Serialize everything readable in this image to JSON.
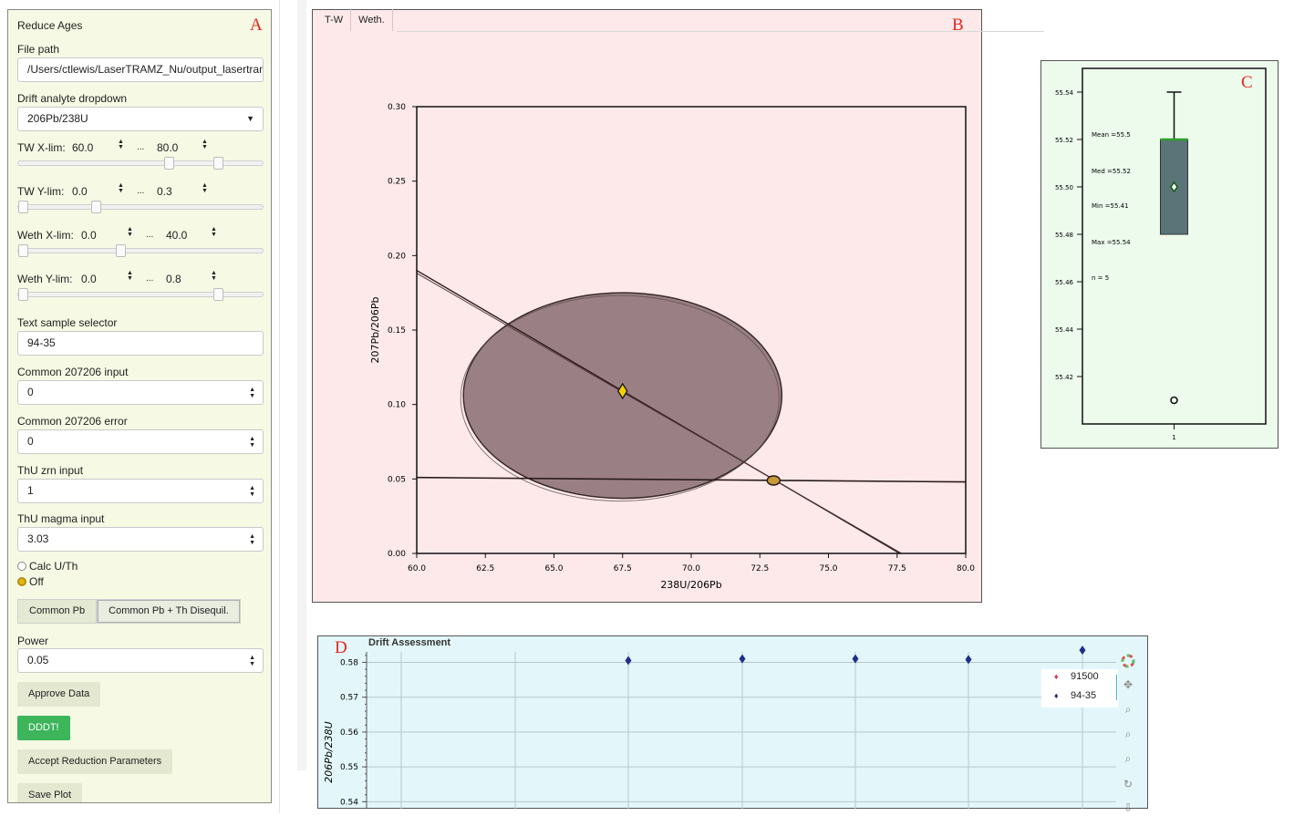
{
  "panelA": {
    "letter": "A",
    "title": "Reduce Ages",
    "file_path": {
      "label": "File path",
      "value": "/Users/ctlewis/LaserTRAMZ_Nu/output_lasertrams"
    },
    "drift_dropdown": {
      "label": "Drift analyte dropdown",
      "value": "206Pb/238U"
    },
    "tw_xlim": {
      "label": "TW X-lim:",
      "low": "60.0",
      "high": "80.0",
      "sep": "...",
      "low_frac": 0.6,
      "high_frac": 0.8
    },
    "tw_ylim": {
      "label": "TW Y-lim:",
      "low": "0.0",
      "high": "0.3",
      "sep": "...",
      "low_frac": 0.0,
      "high_frac": 0.3
    },
    "weth_xlim": {
      "label": "Weth X-lim:",
      "low": "0.0",
      "high": "40.0",
      "sep": "...",
      "low_frac": 0.0,
      "high_frac": 0.4
    },
    "weth_ylim": {
      "label": "Weth Y-lim:",
      "low": "0.0",
      "high": "0.8",
      "sep": "...",
      "low_frac": 0.0,
      "high_frac": 0.8
    },
    "text_sample": {
      "label": "Text sample selector",
      "value": "94-35"
    },
    "common_input": {
      "label": "Common 207206 input",
      "value": "0"
    },
    "common_error": {
      "label": "Common 207206 error",
      "value": "0"
    },
    "thu_zrn": {
      "label": "ThU zrn input",
      "value": "1"
    },
    "thu_magma": {
      "label": "ThU magma input",
      "value": "3.03"
    },
    "radio": [
      {
        "label": "Calc U/Th",
        "checked": false
      },
      {
        "label": "Off",
        "checked": true
      }
    ],
    "segmented": [
      {
        "label": "Common Pb",
        "active": false
      },
      {
        "label": "Common Pb + Th Disequil.",
        "active": true
      }
    ],
    "power": {
      "label": "Power",
      "value": "0.05"
    },
    "buttons": {
      "approve": "Approve Data",
      "ddd": "DDDT!",
      "accept": "Accept Reduction Parameters",
      "save": "Save Plot"
    }
  },
  "panelB": {
    "letter": "B",
    "tabs": [
      "T-W",
      "Weth."
    ],
    "chart_data": {
      "type": "scatter",
      "xlabel": "238U/206Pb",
      "ylabel": "207Pb/206Pb",
      "xlim": [
        60,
        80
      ],
      "ylim": [
        0,
        0.3
      ],
      "xticks": [
        "60.0",
        "62.5",
        "65.0",
        "67.5",
        "70.0",
        "72.5",
        "75.0",
        "77.5",
        "80.0"
      ],
      "yticks": [
        "0.00",
        "0.05",
        "0.10",
        "0.15",
        "0.20",
        "0.25",
        "0.30"
      ],
      "ellipse": {
        "cx": 67.5,
        "cy": 0.106,
        "rx": 5.8,
        "ry": 0.069,
        "color": "#9a8085"
      },
      "centroid": {
        "x": 67.5,
        "y": 0.109,
        "color": "#f5d000"
      },
      "line1": [
        [
          60.0,
          0.19
        ],
        [
          77.6,
          0.0
        ]
      ],
      "line2": [
        [
          60.0,
          0.051
        ],
        [
          80.0,
          0.048
        ]
      ],
      "intercept": {
        "x": 73.0,
        "y": 0.049,
        "color": "#c89a3a"
      }
    }
  },
  "panelC": {
    "letter": "C",
    "chart_data": {
      "type": "box",
      "yticks": [
        "55.42",
        "55.44",
        "55.46",
        "55.48",
        "55.50",
        "55.52",
        "55.54"
      ],
      "ylim": [
        55.4,
        55.55
      ],
      "xtick": "1",
      "q1": 55.48,
      "q3": 55.52,
      "median": 55.52,
      "whisker_high": 55.54,
      "mean": 55.5,
      "outlier": 55.41,
      "stats": [
        "Mean =55.5",
        "Med =55.52",
        "Min =55.41",
        "Max =55.54",
        "n = 5"
      ],
      "box_color": "#5a7478",
      "median_color": "#2ca02c"
    }
  },
  "panelD": {
    "letter": "D",
    "chart_data": {
      "type": "scatter",
      "title": "Drift Assessment",
      "ylabel": "206Pb/238U",
      "ylim": [
        0.538,
        0.583
      ],
      "yticks": [
        "0.54",
        "0.55",
        "0.56",
        "0.57",
        "0.58"
      ],
      "series": [
        {
          "name": "91500",
          "color": "#e0344e",
          "x": [],
          "y": []
        },
        {
          "name": "94-35",
          "color": "#1f2f8a",
          "x": [
            2,
            3,
            4,
            5,
            6
          ],
          "y": [
            0.5805,
            0.581,
            0.581,
            0.5808,
            0.5835
          ]
        }
      ]
    },
    "legend": [
      "91500",
      "94-35"
    ],
    "tools": [
      "bokeh-logo-icon",
      "pan-icon",
      "zoom-icon",
      "zoom-icon",
      "zoom-icon",
      "reset-icon",
      "save-icon"
    ]
  }
}
